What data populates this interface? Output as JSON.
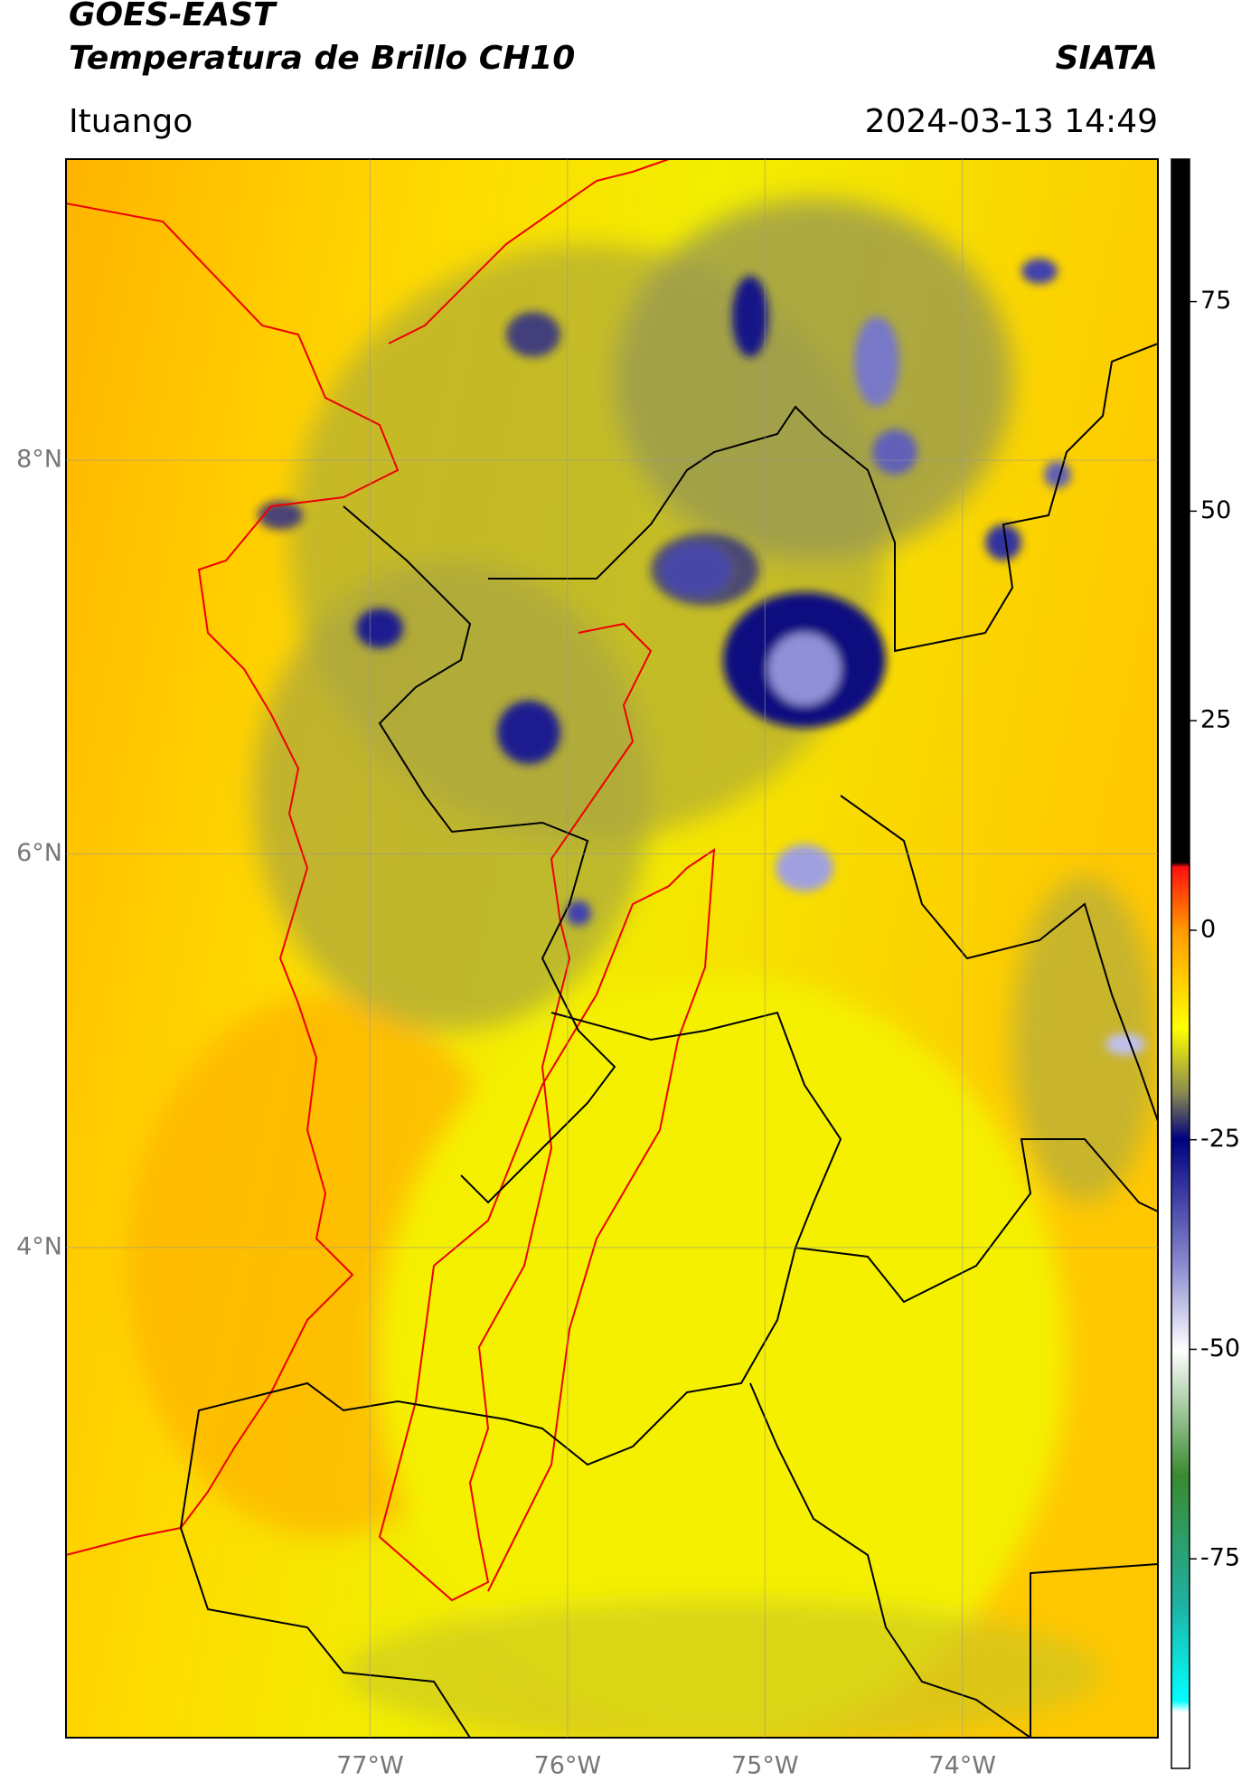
{
  "header": {
    "title": "GOES-EAST",
    "subtitle": "Temperatura de Brillo CH10",
    "source": "SIATA",
    "location": "Ituango",
    "datetime": "2024-03-13 14:49"
  },
  "map": {
    "xlim": [
      -78.54,
      -73.01
    ],
    "ylim": [
      1.51,
      9.53
    ],
    "xticks": [
      {
        "value": -77,
        "label": "77°W"
      },
      {
        "value": -76,
        "label": "76°W"
      },
      {
        "value": -75,
        "label": "75°W"
      },
      {
        "value": -74,
        "label": "74°W"
      }
    ],
    "yticks": [
      {
        "value": 8,
        "label": "8°N"
      },
      {
        "value": 6,
        "label": "6°N"
      },
      {
        "value": 4,
        "label": "4°N"
      }
    ],
    "grid": true
  },
  "colorbar": {
    "lim": [
      -100,
      92
    ],
    "ticks": [
      -75,
      -50,
      -25,
      0,
      25,
      50,
      75
    ]
  }
}
